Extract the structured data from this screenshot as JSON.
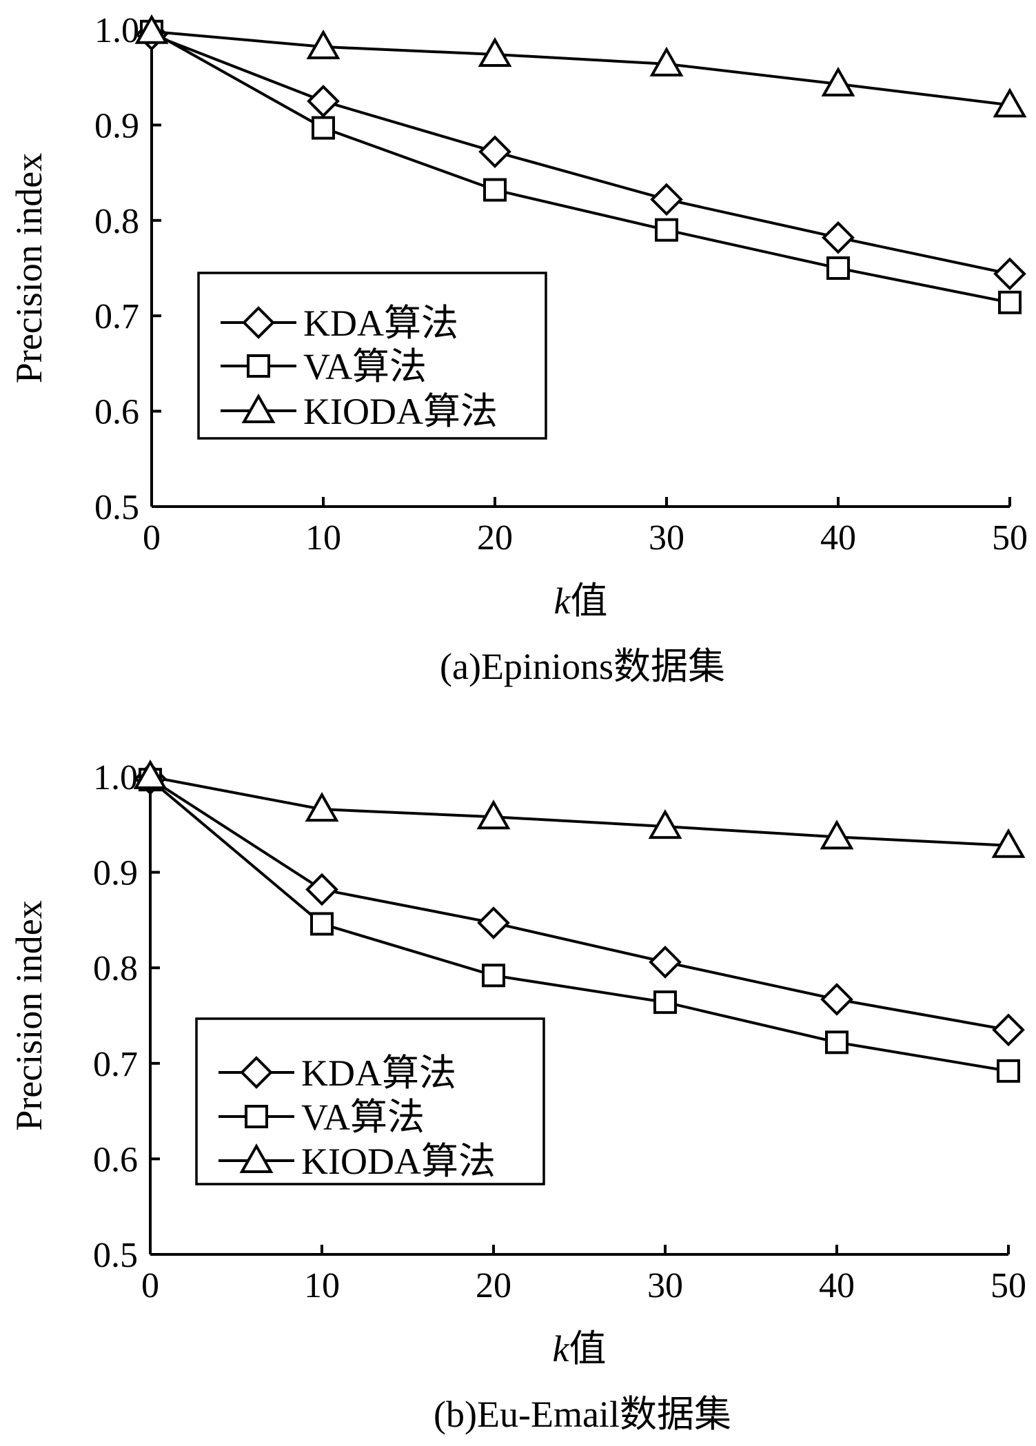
{
  "chart_data": [
    {
      "type": "line",
      "caption": "(a)Epinions数据集",
      "xlabel_italic": "k",
      "xlabel_rest": "值",
      "ylabel": "Precision index",
      "xlim": [
        0,
        50
      ],
      "ylim": [
        0.5,
        1.0
      ],
      "x_ticks": [
        0,
        10,
        20,
        30,
        40,
        50
      ],
      "x_tick_labels": [
        "0",
        "10",
        "20",
        "30",
        "40",
        "50"
      ],
      "y_ticks": [
        0.5,
        0.6,
        0.7,
        0.8,
        0.9,
        1.0
      ],
      "y_tick_labels": [
        "0.5",
        "0.6",
        "0.7",
        "0.8",
        "0.9",
        "1.0"
      ],
      "grid": false,
      "legend_position": "lower-left",
      "x": [
        0,
        10,
        20,
        30,
        40,
        50
      ],
      "series": [
        {
          "name": "KDA算法",
          "marker": "diamond",
          "values": [
            0.995,
            0.925,
            0.872,
            0.822,
            0.782,
            0.744
          ]
        },
        {
          "name": "VA算法",
          "marker": "square",
          "values": [
            0.998,
            0.897,
            0.832,
            0.79,
            0.75,
            0.714
          ]
        },
        {
          "name": "KIODA算法",
          "marker": "triangle",
          "values": [
            0.998,
            0.982,
            0.974,
            0.964,
            0.943,
            0.921
          ]
        }
      ]
    },
    {
      "type": "line",
      "caption": "(b)Eu-Email数据集",
      "xlabel_italic": "k",
      "xlabel_rest": "值",
      "ylabel": "Precision index",
      "xlim": [
        0,
        50
      ],
      "ylim": [
        0.5,
        1.0
      ],
      "x_ticks": [
        0,
        10,
        20,
        30,
        40,
        50
      ],
      "x_tick_labels": [
        "0",
        "10",
        "20",
        "30",
        "40",
        "50"
      ],
      "y_ticks": [
        0.5,
        0.6,
        0.7,
        0.8,
        0.9,
        1.0
      ],
      "y_tick_labels": [
        "0.5",
        "0.6",
        "0.7",
        "0.8",
        "0.9",
        "1.0"
      ],
      "grid": false,
      "legend_position": "lower-left",
      "x": [
        0,
        10,
        20,
        30,
        40,
        50
      ],
      "series": [
        {
          "name": "KDA算法",
          "marker": "diamond",
          "values": [
            0.998,
            0.882,
            0.847,
            0.806,
            0.767,
            0.735
          ]
        },
        {
          "name": "VA算法",
          "marker": "square",
          "values": [
            0.997,
            0.846,
            0.792,
            0.764,
            0.722,
            0.692
          ]
        },
        {
          "name": "KIODA算法",
          "marker": "triangle",
          "values": [
            1.0,
            0.966,
            0.958,
            0.948,
            0.937,
            0.928
          ]
        }
      ]
    }
  ]
}
